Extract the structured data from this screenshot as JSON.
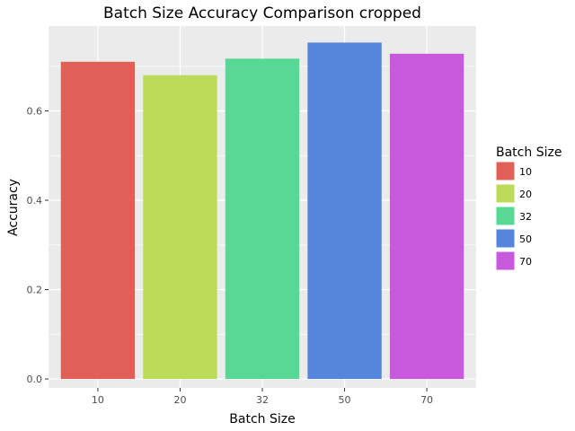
{
  "chart_data": {
    "type": "bar",
    "title": "Batch Size Accuracy Comparison cropped",
    "xlabel": "Batch Size",
    "ylabel": "Accuracy",
    "categories": [
      "10",
      "20",
      "32",
      "50",
      "70"
    ],
    "values": [
      0.71,
      0.68,
      0.717,
      0.753,
      0.728
    ],
    "colors": [
      "#e06058",
      "#bcdb58",
      "#57d894",
      "#5586dc",
      "#c858dc"
    ],
    "ylim": [
      -0.02,
      0.79
    ],
    "yticks": [
      0.0,
      0.2,
      0.4,
      0.6
    ],
    "ytick_labels": [
      "0.0",
      "0.2",
      "0.4",
      "0.6"
    ],
    "grid": true,
    "panel_background": "#ebebeb",
    "legend": {
      "title": "Batch Size",
      "placement": "right",
      "items": [
        "10",
        "20",
        "32",
        "50",
        "70"
      ]
    }
  }
}
